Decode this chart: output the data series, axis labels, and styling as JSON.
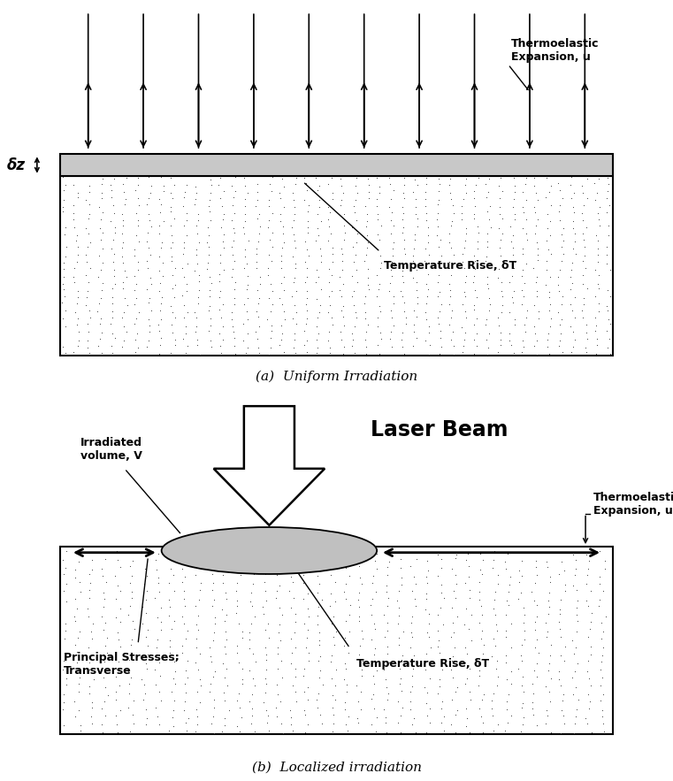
{
  "fig_width": 7.61,
  "fig_height": 8.83,
  "dpi": 100,
  "bg_color": "#ffffff",
  "panel_a_caption": "(a)  Uniform Irradiation",
  "panel_b_caption": "(b)  Localized irradiation",
  "panel_a_label_thermo": "Thermoelastic\nExpansion, u",
  "panel_a_label_temp": "Temperature Rise, δT",
  "panel_a_label_dz": "δz",
  "panel_b_label_laser": "Laser Beam",
  "panel_b_label_irradiated": "Irradiated\nvolume, V",
  "panel_b_label_thermo": "Thermoelastic\nExpansion, u",
  "panel_b_label_temp": "Temperature Rise, δT",
  "panel_b_label_stress": "Principal Stresses;\nTransverse",
  "gray_fill": "#c8c8c8",
  "ellipse_fill": "#c0c0c0",
  "dot_color": "#444444",
  "n_dots_a": 3500,
  "n_dots_b": 3000,
  "dot_size": 2.0
}
